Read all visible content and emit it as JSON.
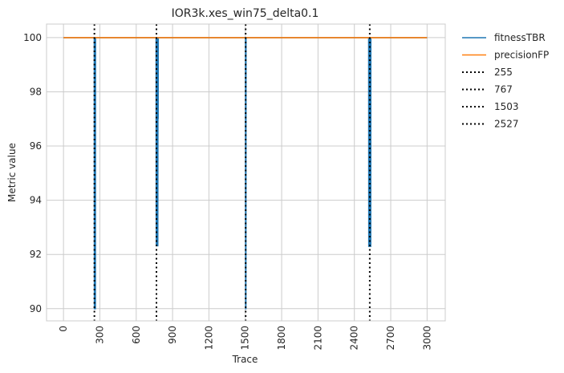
{
  "chart_data": {
    "type": "line",
    "title": "IOR3k.xes_win75_delta0.1",
    "xlabel": "Trace",
    "ylabel": "Metric value",
    "xlim": [
      -140,
      3150
    ],
    "ylim": [
      89.55,
      100.5
    ],
    "x_ticks": [
      0,
      300,
      600,
      900,
      1200,
      1500,
      1800,
      2100,
      2400,
      2700,
      3000
    ],
    "y_ticks": [
      90,
      92,
      94,
      96,
      98,
      100
    ],
    "grid": true,
    "legend_position": "outside-right",
    "series": [
      {
        "name": "fitnessTBR",
        "color": "#1f77b4",
        "points": [
          [
            0,
            100
          ],
          [
            254,
            100
          ],
          [
            255,
            90
          ],
          [
            263,
            90
          ],
          [
            264,
            100
          ],
          [
            764,
            100
          ],
          [
            765,
            93.7
          ],
          [
            766,
            92.3
          ],
          [
            768,
            100
          ],
          [
            769,
            92.3
          ],
          [
            770,
            100
          ],
          [
            771,
            93.5
          ],
          [
            772,
            100
          ],
          [
            773,
            92.3
          ],
          [
            775,
            100
          ],
          [
            776,
            93
          ],
          [
            777,
            100
          ],
          [
            778,
            92.3
          ],
          [
            780,
            100
          ],
          [
            781,
            97
          ],
          [
            782,
            100
          ],
          [
            1502,
            100
          ],
          [
            1503,
            90
          ],
          [
            1505,
            90
          ],
          [
            1506,
            100
          ],
          [
            2518,
            100
          ],
          [
            2519,
            92.3
          ],
          [
            2523,
            92.3
          ],
          [
            2524,
            100
          ],
          [
            2525,
            92.3
          ],
          [
            2530,
            92.3
          ],
          [
            2531,
            100
          ],
          [
            2532,
            92.3
          ],
          [
            2535,
            92.3
          ],
          [
            2536,
            100
          ],
          [
            3000,
            100
          ]
        ]
      },
      {
        "name": "precisionFP",
        "color": "#ff7f0e",
        "points": [
          [
            0,
            100
          ],
          [
            3000,
            100
          ]
        ]
      }
    ],
    "vlines": [
      {
        "name": "255",
        "x": 255,
        "color": "#000000",
        "style": "dotted"
      },
      {
        "name": "767",
        "x": 767,
        "color": "#000000",
        "style": "dotted"
      },
      {
        "name": "1503",
        "x": 1503,
        "color": "#000000",
        "style": "dotted"
      },
      {
        "name": "2527",
        "x": 2527,
        "color": "#000000",
        "style": "dotted"
      }
    ]
  }
}
